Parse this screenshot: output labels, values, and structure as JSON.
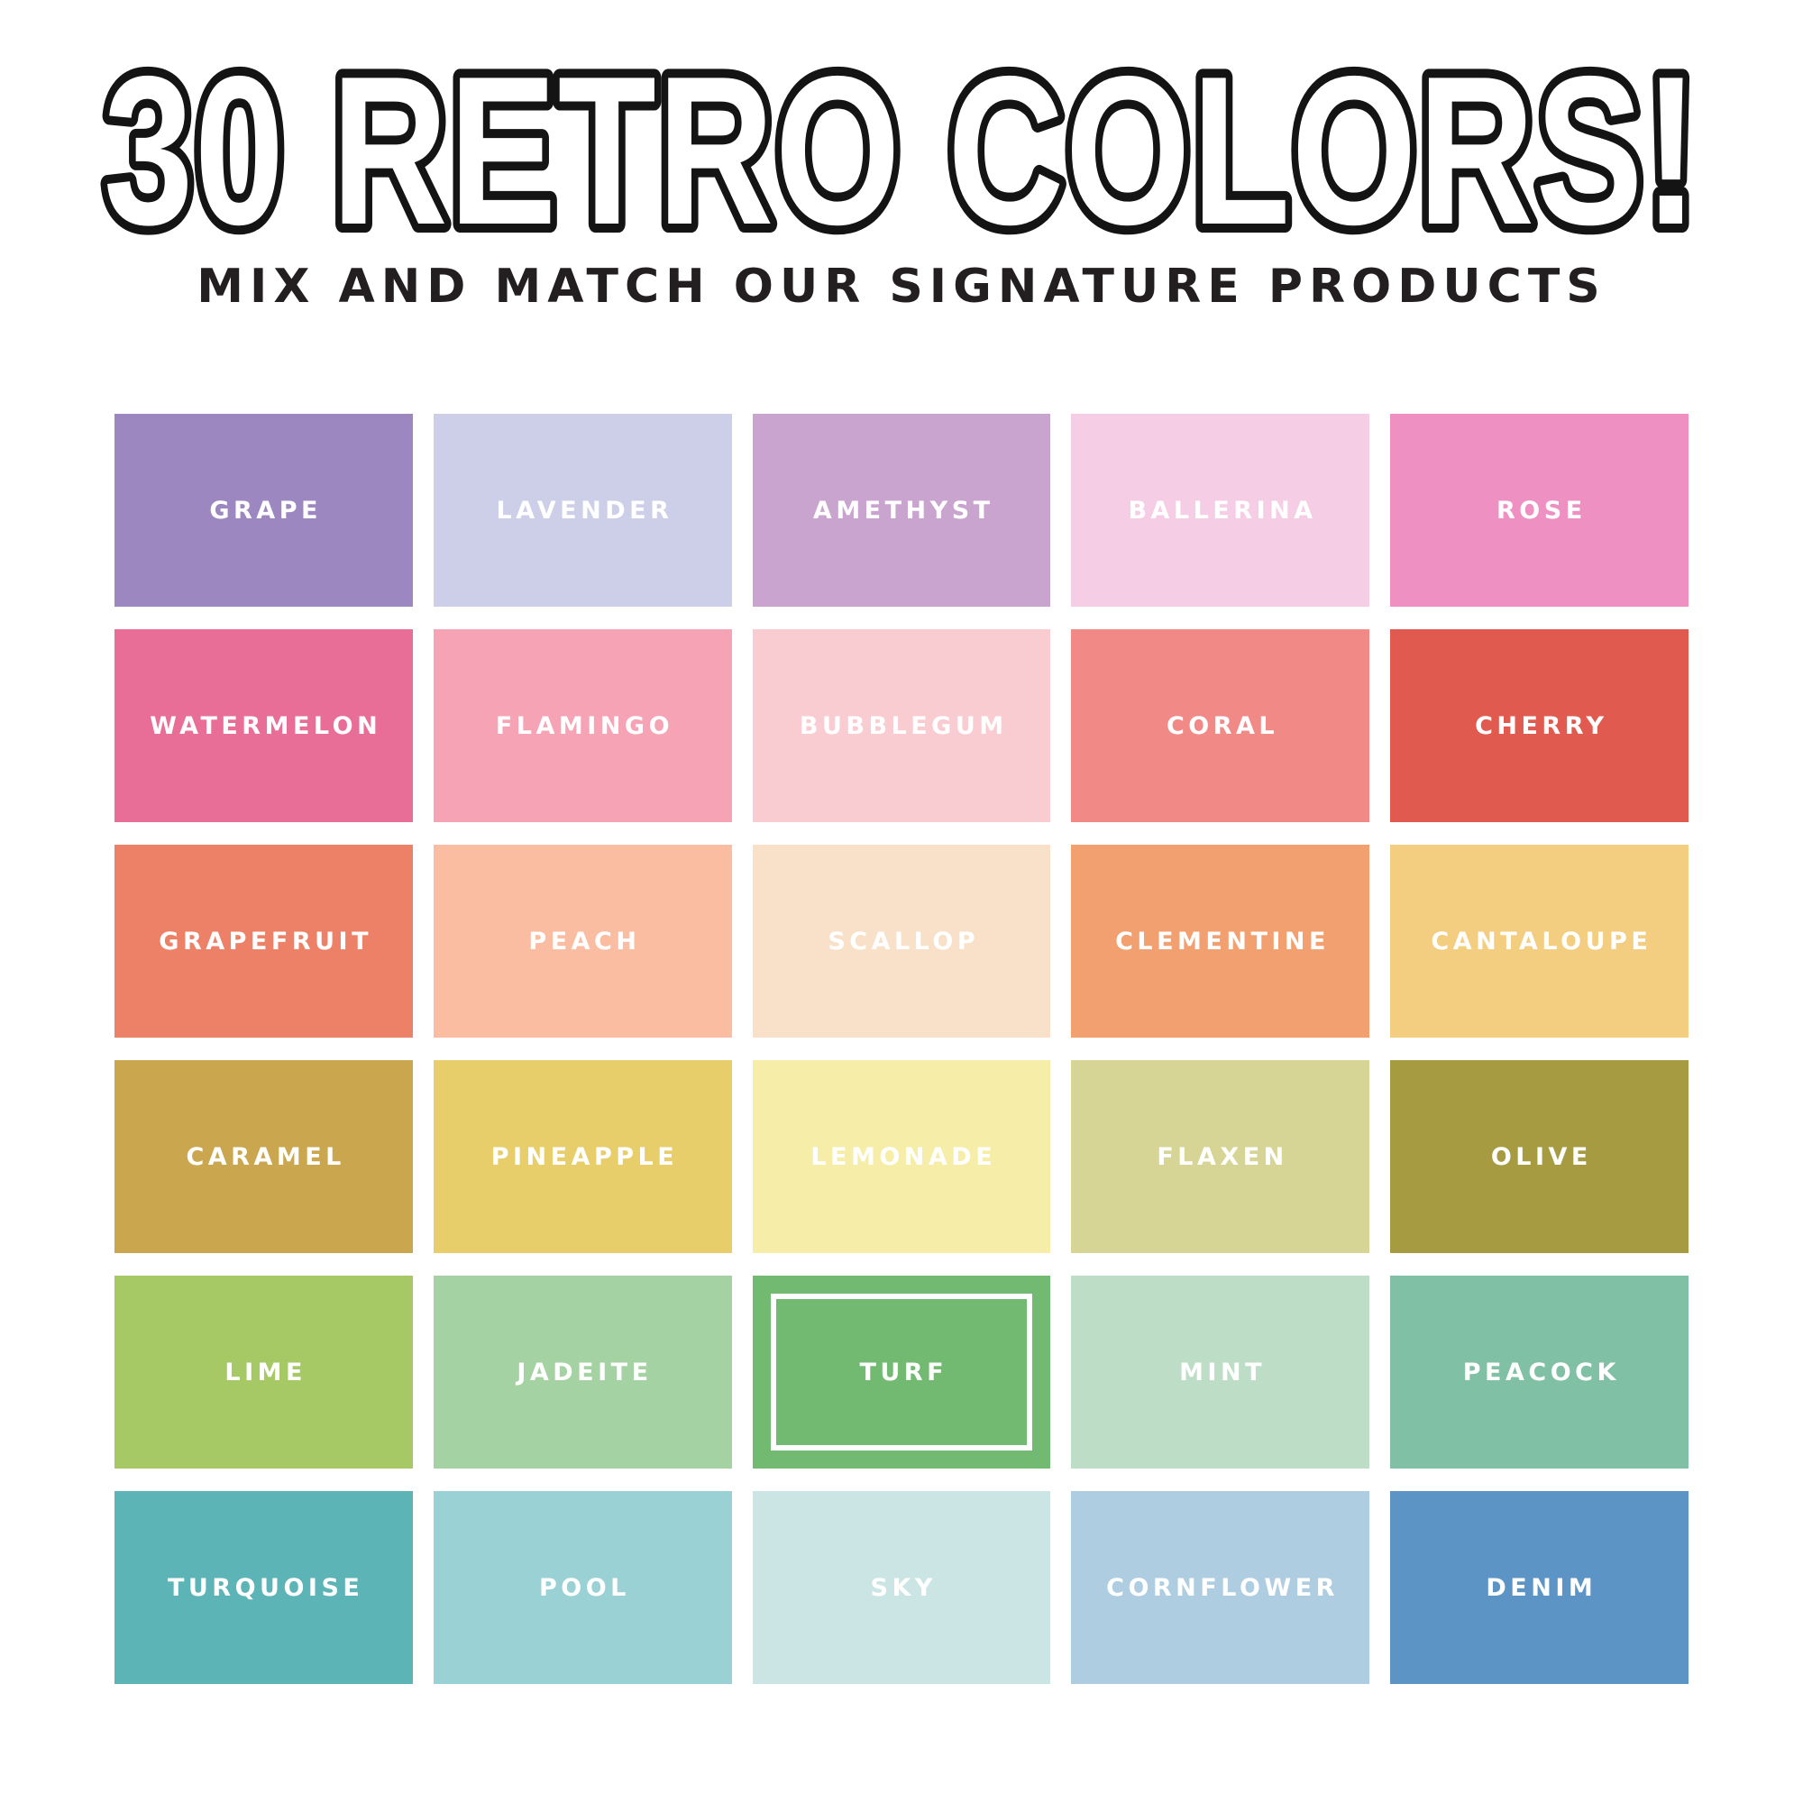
{
  "header": {
    "title": "30 RETRO COLORS!",
    "subtitle": "MIX AND MATCH OUR SIGNATURE PRODUCTS",
    "title_outline_color": "#141414",
    "title_fill_color": "#ffffff",
    "subtitle_color": "#231f20"
  },
  "palette": {
    "selected_swatch": "TURF",
    "label_color": "#ffffff",
    "grid_columns": 5,
    "grid_rows": 6,
    "swatches": [
      {
        "name": "GRAPE",
        "hex": "#9C87C0"
      },
      {
        "name": "LAVENDER",
        "hex": "#CDCFE9"
      },
      {
        "name": "AMETHYST",
        "hex": "#C9A4CF"
      },
      {
        "name": "BALLERINA",
        "hex": "#F5CDE4"
      },
      {
        "name": "ROSE",
        "hex": "#EE90C2"
      },
      {
        "name": "WATERMELON",
        "hex": "#E86E97"
      },
      {
        "name": "FLAMINGO",
        "hex": "#F5A3B5"
      },
      {
        "name": "BUBBLEGUM",
        "hex": "#F8CCD1"
      },
      {
        "name": "CORAL",
        "hex": "#F18A87"
      },
      {
        "name": "CHERRY",
        "hex": "#E15A4F"
      },
      {
        "name": "GRAPEFRUIT",
        "hex": "#ED8167"
      },
      {
        "name": "PEACH",
        "hex": "#FABDA2"
      },
      {
        "name": "SCALLOP",
        "hex": "#F8E1C8"
      },
      {
        "name": "CLEMENTINE",
        "hex": "#F2A06F"
      },
      {
        "name": "CANTALOUPE",
        "hex": "#F3CD80"
      },
      {
        "name": "CARAMEL",
        "hex": "#CAA74E"
      },
      {
        "name": "PINEAPPLE",
        "hex": "#E8CE6A"
      },
      {
        "name": "LEMONADE",
        "hex": "#F6EEA8"
      },
      {
        "name": "FLAXEN",
        "hex": "#D6D595"
      },
      {
        "name": "OLIVE",
        "hex": "#A79B42"
      },
      {
        "name": "LIME",
        "hex": "#A6C966"
      },
      {
        "name": "JADEITE",
        "hex": "#A5D2A3"
      },
      {
        "name": "TURF",
        "hex": "#72BA72"
      },
      {
        "name": "MINT",
        "hex": "#BDDDC6"
      },
      {
        "name": "PEACOCK",
        "hex": "#80C0A4"
      },
      {
        "name": "TURQUOISE",
        "hex": "#5CB4B6"
      },
      {
        "name": "POOL",
        "hex": "#99D1D4"
      },
      {
        "name": "SKY",
        "hex": "#CBE5E5"
      },
      {
        "name": "CORNFLOWER",
        "hex": "#AFCDE1"
      },
      {
        "name": "DENIM",
        "hex": "#5C94C5"
      }
    ]
  }
}
